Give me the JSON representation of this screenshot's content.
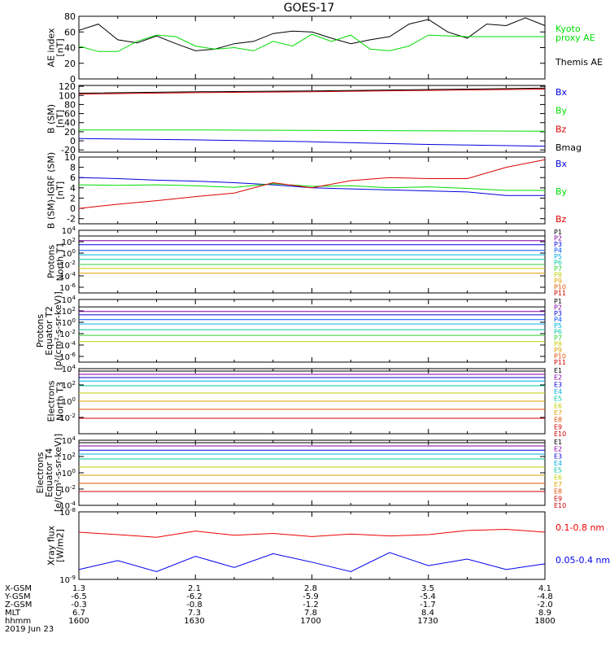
{
  "title": "GOES-17",
  "chart_data": [
    {
      "id": "ae",
      "type": "line",
      "ylabel_lines": [
        "AE index",
        "[nT]"
      ],
      "ylim": [
        0,
        80
      ],
      "yticks": [
        0,
        20,
        40,
        60,
        80
      ],
      "x": [
        1600,
        1605,
        1610,
        1615,
        1620,
        1625,
        1630,
        1635,
        1640,
        1645,
        1650,
        1655,
        1700,
        1705,
        1710,
        1715,
        1720,
        1725,
        1730,
        1735,
        1740,
        1745,
        1750,
        1755,
        1800
      ],
      "series": [
        {
          "name": "Themis AE",
          "color": "#000000",
          "values": [
            62,
            70,
            50,
            46,
            55,
            45,
            36,
            38,
            45,
            48,
            58,
            61,
            60,
            52,
            45,
            50,
            54,
            70,
            76,
            60,
            52,
            70,
            68,
            78,
            68
          ]
        },
        {
          "name": "Kyoto proxy AE",
          "color": "#00dd00",
          "values": [
            42,
            35,
            35,
            48,
            56,
            54,
            42,
            38,
            40,
            36,
            48,
            42,
            57,
            48,
            56,
            38,
            36,
            42,
            56,
            55,
            54,
            54,
            54,
            54,
            54
          ]
        }
      ],
      "legend": [
        {
          "label": "Kyoto",
          "color": "#00dd00"
        },
        {
          "label": "proxy AE",
          "color": "#00dd00"
        },
        {
          "label": "Themis AE",
          "color": "#000000"
        }
      ]
    },
    {
      "id": "bsm",
      "type": "line",
      "ylabel_lines": [
        "B (SM)",
        "[nT]"
      ],
      "ylim": [
        -25,
        122
      ],
      "yticks": [
        -20,
        0,
        20,
        40,
        60,
        80,
        100,
        120
      ],
      "x": [
        1600,
        1630,
        1700,
        1730,
        1800
      ],
      "series": [
        {
          "name": "Bx",
          "color": "#0000dd",
          "values": [
            5,
            2,
            -2,
            -8,
            -12
          ]
        },
        {
          "name": "By",
          "color": "#00dd00",
          "values": [
            24,
            24,
            23,
            22,
            21
          ]
        },
        {
          "name": "Bz",
          "color": "#dd0000",
          "values": [
            103,
            106,
            108,
            111,
            114
          ]
        },
        {
          "name": "Bmag",
          "color": "#000000",
          "values": [
            105,
            108,
            110,
            113,
            116
          ]
        }
      ],
      "legend": [
        {
          "label": "Bx",
          "color": "#0000dd"
        },
        {
          "label": "By",
          "color": "#00dd00"
        },
        {
          "label": "Bz",
          "color": "#dd0000"
        },
        {
          "label": "Bmag",
          "color": "#000000"
        }
      ]
    },
    {
      "id": "bigrf",
      "type": "line",
      "ylabel_lines": [
        "B (SM)-IGRF (SM)",
        "[nT]"
      ],
      "ylim": [
        -3,
        10
      ],
      "yticks": [
        -2,
        0,
        2,
        4,
        6,
        8,
        10
      ],
      "x": [
        1600,
        1610,
        1620,
        1630,
        1640,
        1650,
        1700,
        1710,
        1720,
        1730,
        1740,
        1750,
        1800
      ],
      "series": [
        {
          "name": "Bx",
          "color": "#0000dd",
          "values": [
            6.0,
            5.8,
            5.5,
            5.3,
            5.0,
            4.6,
            4.0,
            3.8,
            3.6,
            3.4,
            3.2,
            2.5,
            2.5
          ]
        },
        {
          "name": "By",
          "color": "#00dd00",
          "values": [
            4.6,
            4.5,
            4.6,
            4.4,
            4.1,
            4.8,
            4.3,
            4.4,
            4.0,
            4.2,
            3.9,
            3.5,
            3.5
          ]
        },
        {
          "name": "Bz",
          "color": "#dd0000",
          "values": [
            0.0,
            0.8,
            1.5,
            2.3,
            3.0,
            5.0,
            4.0,
            5.4,
            6.0,
            5.8,
            5.8,
            8.0,
            9.5
          ]
        }
      ],
      "legend": [
        {
          "label": "Bx",
          "color": "#0000dd"
        },
        {
          "label": "By",
          "color": "#00dd00"
        },
        {
          "label": "Bz",
          "color": "#dd0000"
        }
      ]
    },
    {
      "id": "pnorth",
      "type": "line",
      "log": true,
      "ylabel_lines": [
        "Protons",
        "North T1"
      ],
      "ylim_exp": [
        -7,
        4
      ],
      "yticks_exp": [
        4,
        2,
        0,
        -2,
        -4,
        -6
      ],
      "x": [
        1600,
        1800
      ],
      "series": [
        {
          "name": "P1",
          "color": "#000000",
          "values": [
            1000,
            1000
          ]
        },
        {
          "name": "P2",
          "color": "#8000a0",
          "values": [
            150,
            150
          ]
        },
        {
          "name": "P3",
          "color": "#0000dd",
          "values": [
            30,
            30
          ]
        },
        {
          "name": "P4",
          "color": "#0050ff",
          "values": [
            3,
            3
          ]
        },
        {
          "name": "P5",
          "color": "#00b0e0",
          "values": [
            0.5,
            0.5
          ]
        },
        {
          "name": "P6",
          "color": "#00c8a0",
          "values": [
            0.08,
            0.08
          ]
        },
        {
          "name": "P7",
          "color": "#30d030",
          "values": [
            0.01,
            0.01
          ]
        },
        {
          "name": "P8",
          "color": "#c0d000",
          "values": [
            0.002,
            0.002
          ]
        },
        {
          "name": "P9",
          "color": "#e0a000",
          "values": [
            0.0003,
            0.0003
          ]
        }
      ],
      "labels": [
        {
          "label": "P1",
          "color": "#000000"
        },
        {
          "label": "P2",
          "color": "#8000a0"
        },
        {
          "label": "P3",
          "color": "#0000dd"
        },
        {
          "label": "P4",
          "color": "#0050ff"
        },
        {
          "label": "P5",
          "color": "#00b0e0"
        },
        {
          "label": "P6",
          "color": "#00c8a0"
        },
        {
          "label": "P7",
          "color": "#30d030"
        },
        {
          "label": "P8",
          "color": "#c0d000"
        },
        {
          "label": "P9",
          "color": "#e0a000"
        },
        {
          "label": "P10",
          "color": "#e05000"
        },
        {
          "label": "P11",
          "color": "#cc0000"
        }
      ]
    },
    {
      "id": "pequator",
      "type": "line",
      "log": true,
      "ylabel_lines": [
        "Protons",
        "Equator T2",
        "[p/(cm²-s-sr-keV)]"
      ],
      "ylim_exp": [
        -7,
        4
      ],
      "yticks_exp": [
        4,
        2,
        0,
        -2,
        -4,
        -6
      ],
      "x": [
        1600,
        1800
      ],
      "series": [
        {
          "name": "P1",
          "color": "#000000",
          "values": [
            500,
            500
          ]
        },
        {
          "name": "P2",
          "color": "#8000a0",
          "values": [
            80,
            80
          ]
        },
        {
          "name": "P3",
          "color": "#0000dd",
          "values": [
            20,
            20
          ]
        },
        {
          "name": "P4",
          "color": "#0050ff",
          "values": [
            3,
            3
          ]
        },
        {
          "name": "P5",
          "color": "#00b0e0",
          "values": [
            0.5,
            0.5
          ]
        },
        {
          "name": "P6",
          "color": "#00c8a0",
          "values": [
            0.05,
            0.05
          ]
        },
        {
          "name": "P7",
          "color": "#30d030",
          "values": [
            0.005,
            0.005
          ]
        },
        {
          "name": "P8",
          "color": "#c0d000",
          "values": [
            0.0004,
            0.0004
          ]
        }
      ],
      "labels": [
        {
          "label": "P1",
          "color": "#000000"
        },
        {
          "label": "P2",
          "color": "#8000a0"
        },
        {
          "label": "P3",
          "color": "#0000dd"
        },
        {
          "label": "P4",
          "color": "#0050ff"
        },
        {
          "label": "P5",
          "color": "#00b0e0"
        },
        {
          "label": "P6",
          "color": "#00c8a0"
        },
        {
          "label": "P7",
          "color": "#30d030"
        },
        {
          "label": "P8",
          "color": "#c0d000"
        },
        {
          "label": "P9",
          "color": "#e0a000"
        },
        {
          "label": "P10",
          "color": "#e05000"
        },
        {
          "label": "P11",
          "color": "#cc0000"
        }
      ]
    },
    {
      "id": "enorth",
      "type": "line",
      "log": true,
      "ylabel_lines": [
        "Electrons",
        "North T3"
      ],
      "ylim_exp": [
        -4,
        4
      ],
      "yticks_exp": [
        4,
        2,
        0,
        -2
      ],
      "x": [
        1600,
        1800
      ],
      "series": [
        {
          "name": "E1",
          "color": "#000000",
          "values": [
            5000,
            5000
          ]
        },
        {
          "name": "E2",
          "color": "#8000a0",
          "values": [
            2000,
            2000
          ]
        },
        {
          "name": "E3",
          "color": "#0000dd",
          "values": [
            800,
            800
          ]
        },
        {
          "name": "E4",
          "color": "#00b0e0",
          "values": [
            300,
            300
          ]
        },
        {
          "name": "E5",
          "color": "#00c8a0",
          "values": [
            80,
            80
          ]
        },
        {
          "name": "E6",
          "color": "#c0d000",
          "values": [
            10,
            10
          ]
        },
        {
          "name": "E7",
          "color": "#e0a000",
          "values": [
            1,
            1
          ]
        },
        {
          "name": "E8",
          "color": "#e05000",
          "values": [
            0.1,
            0.1
          ]
        },
        {
          "name": "E9",
          "color": "#cc0000",
          "values": [
            0.008,
            0.008
          ]
        }
      ],
      "labels": [
        {
          "label": "E1",
          "color": "#000000"
        },
        {
          "label": "E2",
          "color": "#8000a0"
        },
        {
          "label": "E3",
          "color": "#0000dd"
        },
        {
          "label": "E4",
          "color": "#00b0e0"
        },
        {
          "label": "E5",
          "color": "#00c8a0"
        },
        {
          "label": "E6",
          "color": "#c0d000"
        },
        {
          "label": "E7",
          "color": "#e0a000"
        },
        {
          "label": "E8",
          "color": "#e05000"
        },
        {
          "label": "E9",
          "color": "#cc0000"
        },
        {
          "label": "E10",
          "color": "#cc0000"
        }
      ]
    },
    {
      "id": "eequator",
      "type": "line",
      "log": true,
      "ylabel_lines": [
        "Electrons",
        "Equator T4",
        "[e/(cm²-s-sr-keV)]"
      ],
      "ylim_exp": [
        -4,
        4
      ],
      "yticks_exp": [
        4,
        2,
        0,
        -2,
        -4
      ],
      "x": [
        1600,
        1800
      ],
      "series": [
        {
          "name": "E1",
          "color": "#000000",
          "values": [
            5000,
            5000
          ]
        },
        {
          "name": "E2",
          "color": "#8000a0",
          "values": [
            2000,
            2000
          ]
        },
        {
          "name": "E3",
          "color": "#0000dd",
          "values": [
            600,
            600
          ]
        },
        {
          "name": "E4",
          "color": "#00b0e0",
          "values": [
            200,
            200
          ]
        },
        {
          "name": "E5",
          "color": "#00c8a0",
          "values": [
            50,
            50
          ]
        },
        {
          "name": "E6",
          "color": "#c0d000",
          "values": [
            5,
            5
          ]
        },
        {
          "name": "E7",
          "color": "#e0a000",
          "values": [
            0.5,
            0.5
          ]
        },
        {
          "name": "E8",
          "color": "#e05000",
          "values": [
            0.05,
            0.05
          ]
        },
        {
          "name": "E9",
          "color": "#cc0000",
          "values": [
            0.005,
            0.005
          ]
        }
      ],
      "labels": [
        {
          "label": "E1",
          "color": "#000000"
        },
        {
          "label": "E2",
          "color": "#8000a0"
        },
        {
          "label": "E3",
          "color": "#0000dd"
        },
        {
          "label": "E4",
          "color": "#00b0e0"
        },
        {
          "label": "E5",
          "color": "#00c8a0"
        },
        {
          "label": "E6",
          "color": "#c0d000"
        },
        {
          "label": "E7",
          "color": "#e0a000"
        },
        {
          "label": "E8",
          "color": "#e05000"
        },
        {
          "label": "E9",
          "color": "#cc0000"
        },
        {
          "label": "E10",
          "color": "#cc0000"
        }
      ]
    },
    {
      "id": "xray",
      "type": "line",
      "log": true,
      "ylabel_lines": [
        "Xray flux",
        "[W/m2]"
      ],
      "ylim_exp": [
        -9,
        -8
      ],
      "yticks_exp": [
        -8,
        -9
      ],
      "x": [
        1600,
        1610,
        1620,
        1630,
        1640,
        1650,
        1700,
        1710,
        1720,
        1730,
        1740,
        1750,
        1800
      ],
      "series": [
        {
          "name": "0.1-0.8 nm",
          "color": "#ee0000",
          "values": [
            5e-09,
            4.6e-09,
            4.2e-09,
            5.2e-09,
            4.5e-09,
            4.8e-09,
            4.3e-09,
            4.7e-09,
            4.4e-09,
            4.6e-09,
            5.3e-09,
            5.5e-09,
            5e-09
          ]
        },
        {
          "name": "0.05-0.4 nm",
          "color": "#0000ee",
          "values": [
            1.4e-09,
            1.9e-09,
            1.3e-09,
            2.2e-09,
            1.5e-09,
            2.4e-09,
            1.8e-09,
            1.3e-09,
            2.5e-09,
            1.6e-09,
            2e-09,
            1.4e-09,
            1.7e-09
          ]
        }
      ],
      "legend": [
        {
          "label": "0.1-0.8 nm",
          "color": "#ee0000"
        },
        {
          "label": "0.05-0.4 nm",
          "color": "#0000ee"
        }
      ]
    }
  ],
  "footer": {
    "row_labels": [
      "X-GSM",
      "Y-GSM",
      "Z-GSM",
      "MLT",
      "hhmm",
      "2019 Jun 23"
    ],
    "columns": [
      [
        "1.3",
        "-6.5",
        "-0.3",
        "6.7",
        "1600"
      ],
      [
        "2.1",
        "-6.2",
        "-0.8",
        "7.3",
        "1630"
      ],
      [
        "2.8",
        "-5.9",
        "-1.2",
        "7.8",
        "1700"
      ],
      [
        "3.5",
        "-5.4",
        "-1.7",
        "8.4",
        "1730"
      ],
      [
        "4.1",
        "-4.8",
        "-2.0",
        "8.9",
        "1800"
      ]
    ]
  }
}
